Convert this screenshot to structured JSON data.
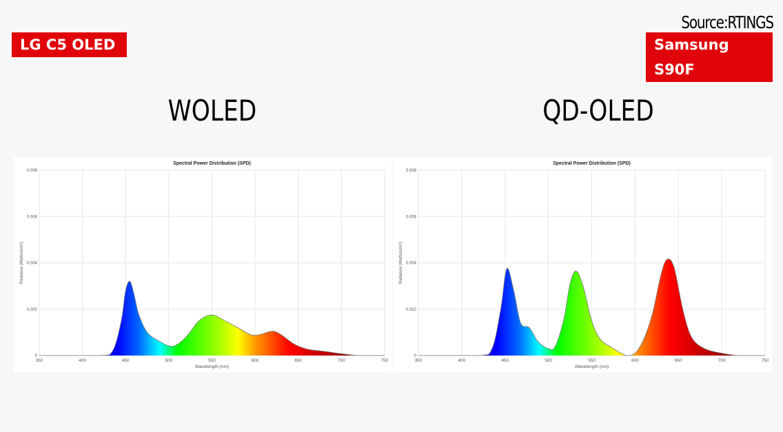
{
  "labels": {
    "left_badge": "LG C5 OLED",
    "right_badge": "Samsung S90F",
    "source": "Source:RTINGS"
  },
  "titles": {
    "left": "WOLED",
    "right": "QD-OLED"
  },
  "colors": {
    "badge": "#e0050a"
  },
  "chart_data": [
    {
      "type": "area",
      "title": "Spectral Power Distribution (SPD)",
      "xlabel": "Wavelength (nm)",
      "ylabel": "Radiance (Watts/sr/m²)",
      "xlim": [
        350,
        750
      ],
      "ylim": [
        0,
        0.008
      ],
      "xticks": [
        "350",
        "400",
        "450",
        "500",
        "550",
        "600",
        "650",
        "700",
        "750"
      ],
      "yticks": [
        "0",
        "0.002",
        "0.004",
        "0.006",
        "0.008"
      ],
      "grid": true,
      "fill": "visible-spectrum gradient",
      "x": [
        350,
        420,
        435,
        445,
        450,
        455,
        460,
        465,
        475,
        490,
        505,
        520,
        535,
        550,
        565,
        580,
        595,
        605,
        620,
        630,
        645,
        660,
        680,
        700,
        720,
        750
      ],
      "y": [
        0,
        0,
        0.0002,
        0.0015,
        0.0028,
        0.0032,
        0.0026,
        0.0018,
        0.001,
        0.0006,
        0.0004,
        0.0008,
        0.0015,
        0.00175,
        0.0015,
        0.0012,
        0.0009,
        0.0009,
        0.00105,
        0.0009,
        0.0005,
        0.00028,
        0.00018,
        8e-05,
        0,
        0
      ]
    },
    {
      "type": "area",
      "title": "Spectral Power Distribution (SPD)",
      "xlabel": "Wavelength (nm)",
      "ylabel": "Radiance (Watts/sr/m²)",
      "xlim": [
        350,
        750
      ],
      "ylim": [
        0,
        0.008
      ],
      "xticks": [
        "350",
        "400",
        "450",
        "500",
        "550",
        "600",
        "650",
        "700",
        "750"
      ],
      "yticks": [
        "0",
        "0.002",
        "0.004",
        "0.006",
        "0.008"
      ],
      "grid": true,
      "fill": "visible-spectrum gradient",
      "x": [
        350,
        420,
        435,
        445,
        452,
        460,
        468,
        478,
        488,
        500,
        508,
        518,
        525,
        532,
        540,
        550,
        560,
        575,
        590,
        600,
        610,
        620,
        630,
        637,
        645,
        655,
        665,
        680,
        700,
        720,
        750
      ],
      "y": [
        0,
        0,
        0.0003,
        0.002,
        0.00375,
        0.0028,
        0.0014,
        0.0012,
        0.0006,
        0.0003,
        0.0004,
        0.0016,
        0.0031,
        0.00365,
        0.003,
        0.0015,
        0.0007,
        0.0003,
        0,
        0.0001,
        0.0007,
        0.0018,
        0.0035,
        0.00415,
        0.0038,
        0.002,
        0.0008,
        0.0003,
        0.0001,
        0,
        0
      ]
    }
  ]
}
